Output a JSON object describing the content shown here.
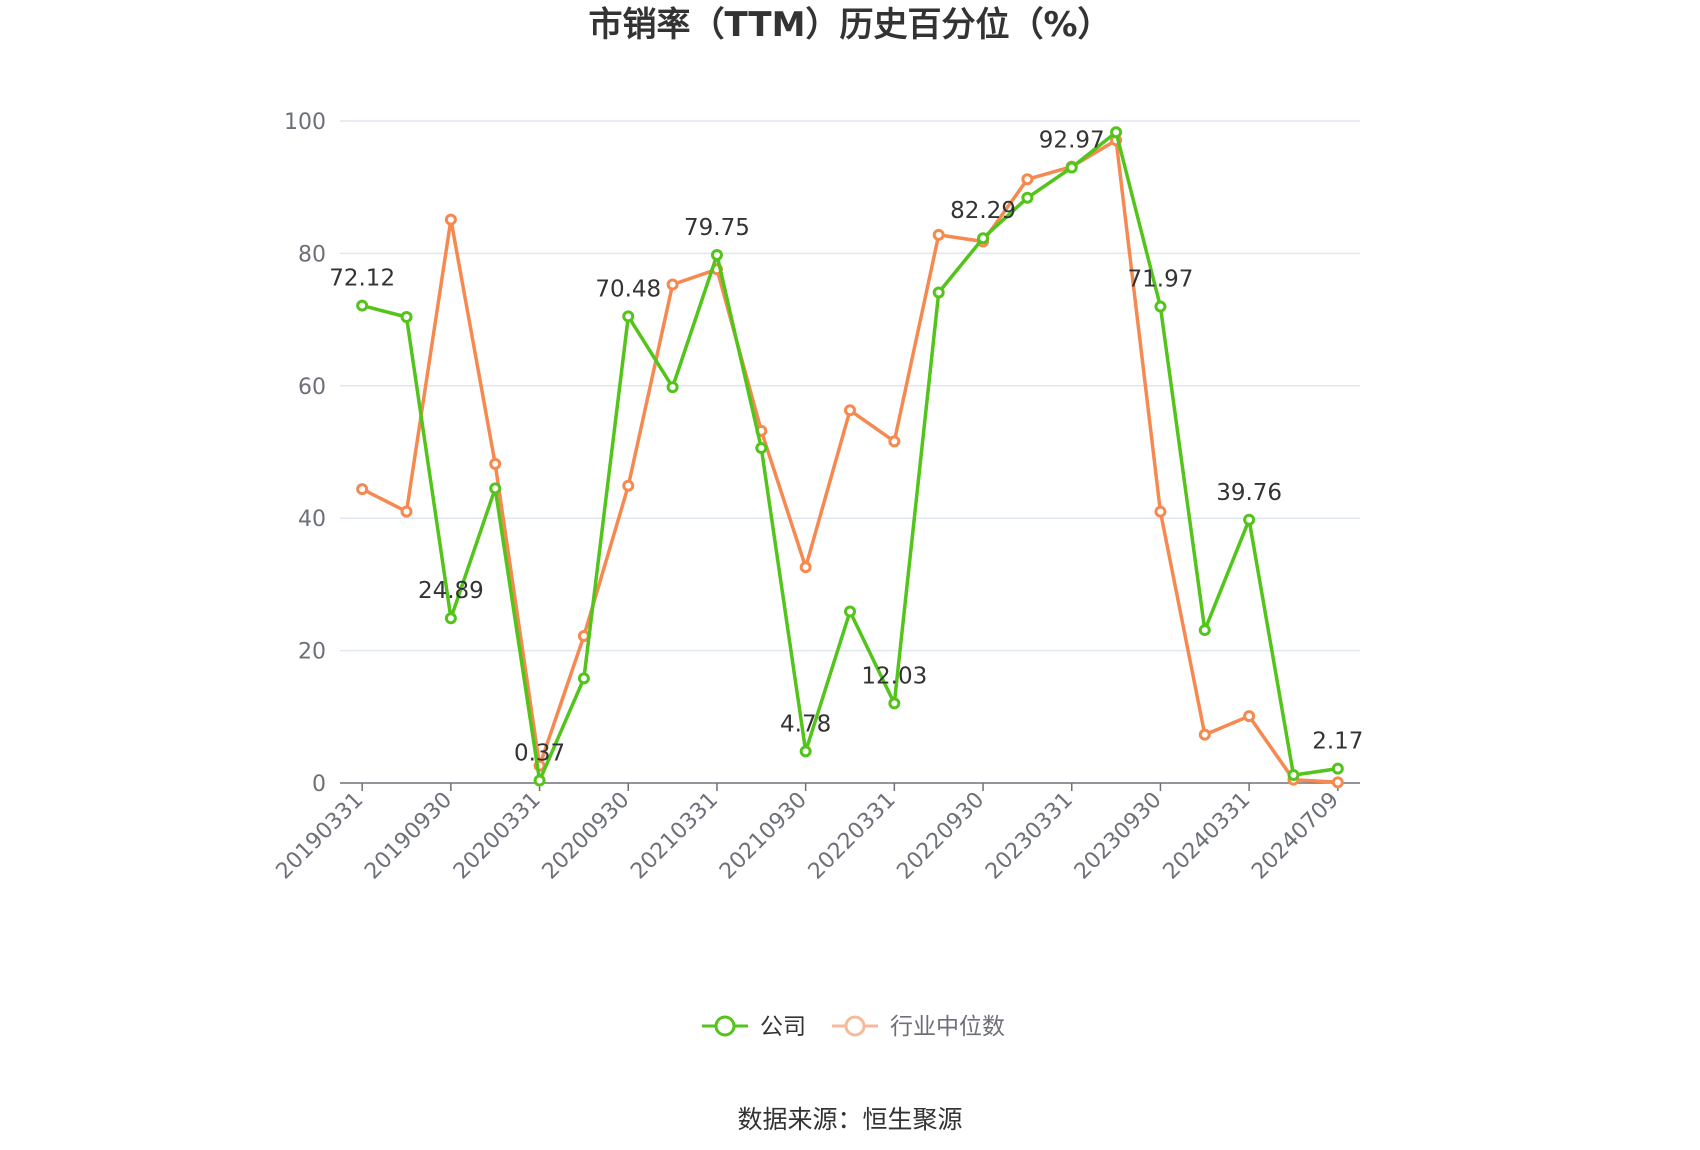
{
  "chart_data": {
    "type": "line",
    "title": "市销率（TTM）历史百分位（%）",
    "source": "数据来源：恒生聚源",
    "xlabel": "",
    "ylabel": "",
    "ylim": [
      0,
      100
    ],
    "yticks": [
      0,
      20,
      40,
      60,
      80,
      100
    ],
    "grid": true,
    "legend_position": "bottom-center",
    "categories": [
      "20190331",
      "20190630",
      "20190930",
      "20191231",
      "20200331",
      "20200630",
      "20200930",
      "20201231",
      "20210331",
      "20210630",
      "20210930",
      "20211231",
      "20220331",
      "20220630",
      "20220930",
      "20221231",
      "20230331",
      "20230630",
      "20230930",
      "20231231",
      "20240331",
      "20240630",
      "20240709"
    ],
    "xtick_labels": [
      "20190331",
      "20190930",
      "20200331",
      "20200930",
      "20210331",
      "20210930",
      "20220331",
      "20220930",
      "20230331",
      "20230930",
      "20240331",
      "20240709"
    ],
    "series": [
      {
        "name": "公司",
        "color": "#52c41a",
        "values": [
          72.12,
          70.4,
          24.89,
          44.5,
          0.37,
          15.8,
          70.48,
          59.8,
          79.75,
          50.6,
          4.78,
          25.9,
          12.03,
          74.1,
          82.29,
          88.4,
          92.97,
          98.3,
          71.97,
          23.1,
          39.76,
          1.2,
          2.17
        ],
        "labels": {
          "0": "72.12",
          "2": "24.89",
          "4": "0.37",
          "6": "70.48",
          "8": "79.75",
          "10": "4.78",
          "12": "12.03",
          "14": "82.29",
          "16": "92.97",
          "18": "71.97",
          "20": "39.76",
          "22": "2.17"
        }
      },
      {
        "name": "行业中位数",
        "color": "#f5894f",
        "values": [
          44.4,
          41.0,
          85.1,
          48.2,
          2.6,
          22.2,
          44.9,
          75.3,
          77.6,
          53.2,
          32.6,
          56.3,
          51.6,
          82.8,
          81.8,
          91.2,
          93.1,
          97.1,
          41.0,
          7.3,
          10.1,
          0.5,
          0.1
        ]
      }
    ]
  }
}
